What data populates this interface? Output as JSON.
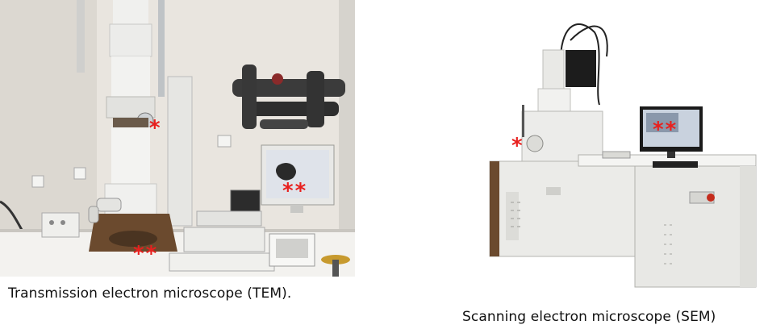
{
  "tem": {
    "caption": "Transmission electron microscope (TEM).",
    "markers": {
      "column": "*",
      "stage": "**",
      "screen": "**"
    }
  },
  "sem": {
    "caption": "Scanning electron microscope (SEM)",
    "markers": {
      "chamber": "*",
      "screen": "**"
    }
  },
  "colors": {
    "marker": "#e8201e",
    "wall": "#e6e2dc",
    "instrument": "#ebebe8",
    "cabinet_brown": "#6b4a2e"
  }
}
